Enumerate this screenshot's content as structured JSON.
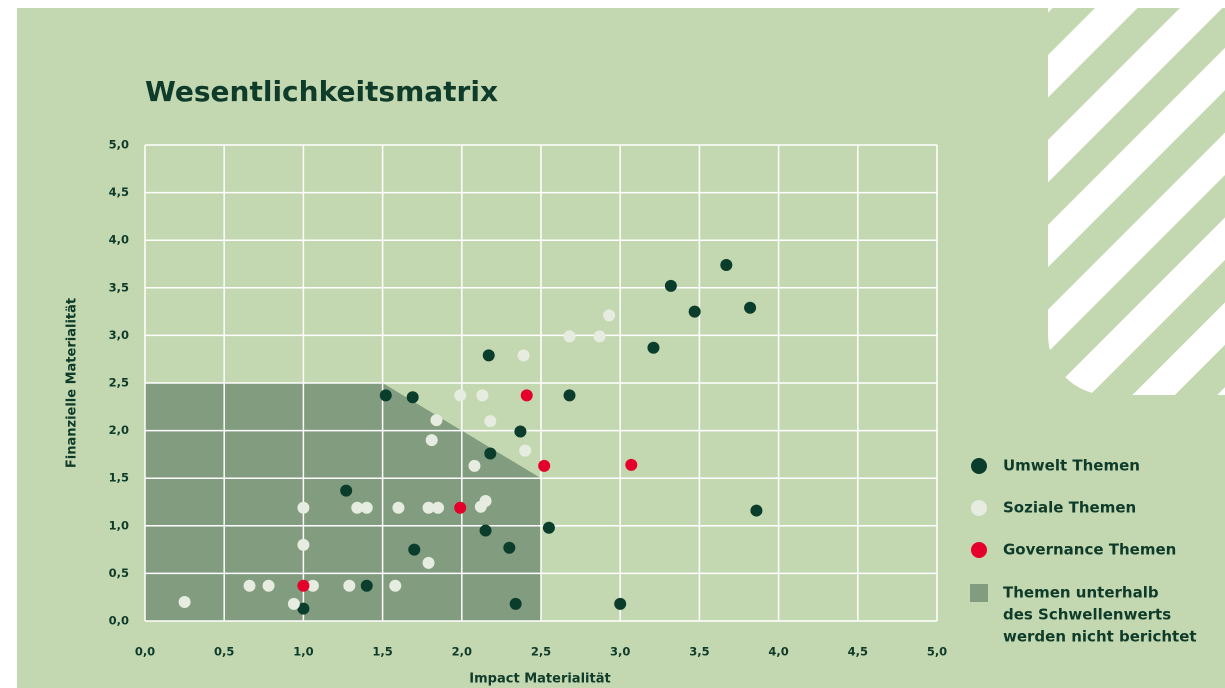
{
  "chart_data": {
    "type": "scatter",
    "title": "Wesentlichkeitsmatrix",
    "x_label": "Impact Materialität",
    "y_label": "Finanzielle Materialität",
    "xlim": [
      0,
      5
    ],
    "ylim": [
      0,
      5
    ],
    "xticks": [
      {
        "value": 0,
        "label": "0,0"
      },
      {
        "value": 0.5,
        "label": "0,5"
      },
      {
        "value": 1,
        "label": "1,0"
      },
      {
        "value": 1.5,
        "label": "1,5"
      },
      {
        "value": 2,
        "label": "2,0"
      },
      {
        "value": 2.5,
        "label": "2,5"
      },
      {
        "value": 3,
        "label": "3,0"
      },
      {
        "value": 3.5,
        "label": "3,5"
      },
      {
        "value": 4,
        "label": "4,0"
      },
      {
        "value": 4.5,
        "label": "4,5"
      },
      {
        "value": 5,
        "label": "5,0"
      }
    ],
    "yticks": [
      {
        "value": 0,
        "label": "0,0"
      },
      {
        "value": 0.5,
        "label": "0,5"
      },
      {
        "value": 1,
        "label": "1,0"
      },
      {
        "value": 1.5,
        "label": "1,5"
      },
      {
        "value": 2,
        "label": "2,0"
      },
      {
        "value": 2.5,
        "label": "2,5"
      },
      {
        "value": 3,
        "label": "3,0"
      },
      {
        "value": 3.5,
        "label": "3,5"
      },
      {
        "value": 4,
        "label": "4,0"
      },
      {
        "value": 4.5,
        "label": "4,5"
      },
      {
        "value": 5,
        "label": "5,0"
      }
    ],
    "grid": true,
    "threshold": {
      "x": [
        0,
        0,
        1.5,
        2.5,
        2.5
      ],
      "y": [
        0,
        2.5,
        2.5,
        1.5,
        0
      ],
      "color": "#819c7f",
      "label": [
        "Themen unterhalb",
        "des Schwellenwerts",
        "werden nicht berichtet"
      ]
    },
    "series": [
      {
        "name": "Umwelt Themen",
        "color": "#0b3d2c",
        "x": [
          1.52,
          1.69,
          2.17,
          2.37,
          2.18,
          2.68,
          3.32,
          3.67,
          3.47,
          3.82,
          3.21,
          1.27,
          1.7,
          2.15,
          2.3,
          2.55,
          3.86,
          1.4,
          1.0,
          2.34,
          3.0
        ],
        "values": [
          2.37,
          2.35,
          2.79,
          1.99,
          1.76,
          2.37,
          3.52,
          3.74,
          3.25,
          3.29,
          2.87,
          1.37,
          0.75,
          0.95,
          0.77,
          0.98,
          1.16,
          0.37,
          0.13,
          0.18,
          0.18
        ]
      },
      {
        "name": "Soziale Themen",
        "color": "#e6ecdf",
        "x": [
          2.93,
          2.68,
          2.87,
          2.39,
          1.99,
          2.13,
          2.18,
          1.84,
          1.81,
          2.4,
          2.08,
          2.15,
          2.12,
          1.34,
          1.4,
          1.6,
          1.79,
          1.85,
          1.0,
          1.0,
          1.79,
          0.25,
          0.66,
          0.78,
          1.06,
          1.29,
          1.58,
          0.94
        ],
        "values": [
          3.21,
          2.99,
          2.99,
          2.79,
          2.37,
          2.37,
          2.1,
          2.11,
          1.9,
          1.79,
          1.63,
          1.26,
          1.2,
          1.19,
          1.19,
          1.19,
          1.19,
          1.19,
          1.19,
          0.8,
          0.61,
          0.2,
          0.37,
          0.37,
          0.37,
          0.37,
          0.37,
          0.18
        ]
      },
      {
        "name": "Governance Themen",
        "color": "#e4002b",
        "x": [
          2.41,
          2.52,
          3.07,
          1.99,
          1.0
        ],
        "values": [
          2.37,
          1.63,
          1.64,
          1.19,
          0.37
        ]
      }
    ]
  }
}
